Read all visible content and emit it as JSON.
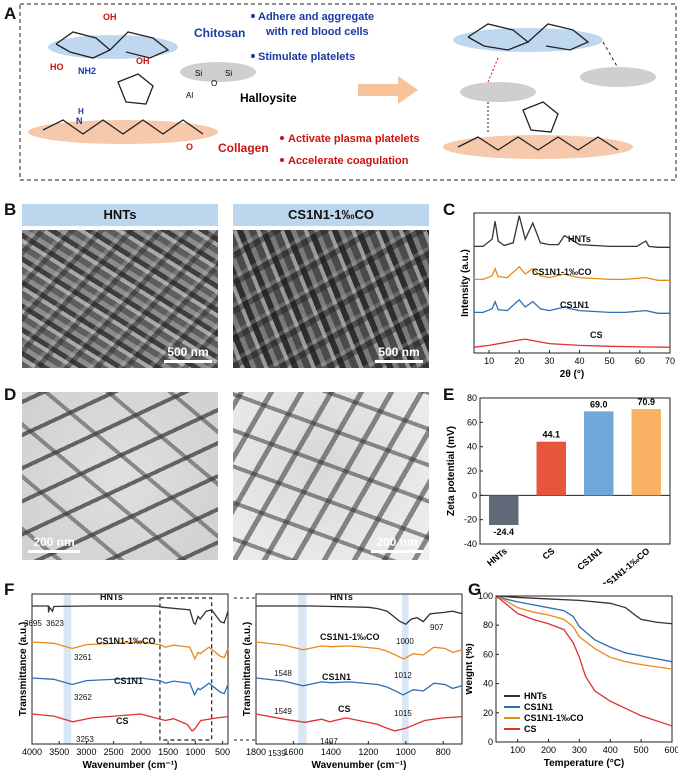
{
  "panels": {
    "a": "A",
    "b": "B",
    "c": "C",
    "d": "D",
    "e": "E",
    "f": "F",
    "g": "G"
  },
  "schematic": {
    "chitosan": "Chitosan",
    "halloysite": "Halloysite",
    "collagen": "Collagen",
    "chitosan_points": [
      "Adhere and aggregate",
      "with red blood cells",
      "Stimulate platelets"
    ],
    "collagen_points": [
      "Activate plasma platelets",
      "Accelerate coagulation"
    ],
    "groups": [
      "OH",
      "NH2",
      "HO",
      "OH",
      "Si",
      "O",
      "Al",
      "H",
      "N",
      "O"
    ]
  },
  "panelB": {
    "left_title": "HNTs",
    "right_title": "CS1N1-1‰CO",
    "scale": "500 nm"
  },
  "panelD": {
    "scale": "200 nm"
  },
  "chart_data": [
    {
      "id": "C",
      "type": "line",
      "xlabel": "2θ (°)",
      "ylabel": "Intensity (a.u.)",
      "xlim": [
        5,
        70
      ],
      "xticks": [
        10,
        20,
        30,
        40,
        50,
        60,
        70
      ],
      "series": [
        {
          "name": "HNTs",
          "color": "#333333",
          "offset": 3,
          "x": [
            5,
            8,
            11,
            12,
            13,
            15,
            18,
            20,
            22,
            24.5,
            27,
            30,
            33,
            35,
            37,
            40,
            45,
            50,
            55,
            59,
            62,
            63,
            66,
            70
          ],
          "y": [
            0.2,
            0.2,
            0.6,
            1.6,
            0.5,
            0.25,
            0.4,
            1.9,
            0.6,
            1.5,
            0.4,
            0.3,
            0.3,
            0.8,
            0.6,
            0.3,
            0.25,
            0.2,
            0.2,
            0.2,
            0.5,
            0.2,
            0.15,
            0.15
          ]
        },
        {
          "name": "CS1N1-1‰CO",
          "color": "#e88a1a",
          "offset": 2,
          "x": [
            5,
            8,
            11,
            12,
            13,
            16,
            20,
            22,
            24.5,
            27,
            30,
            35,
            37,
            40,
            45,
            50,
            55,
            62,
            66,
            70
          ],
          "y": [
            0.2,
            0.2,
            0.4,
            0.8,
            0.35,
            0.3,
            0.9,
            0.5,
            0.8,
            0.4,
            0.3,
            0.5,
            0.4,
            0.3,
            0.25,
            0.2,
            0.2,
            0.3,
            0.15,
            0.15
          ]
        },
        {
          "name": "CS1N1",
          "color": "#2f6db5",
          "offset": 1,
          "x": [
            5,
            8,
            11,
            12,
            13,
            16,
            20,
            22,
            24.5,
            27,
            30,
            35,
            37,
            40,
            45,
            50,
            55,
            62,
            66,
            70
          ],
          "y": [
            0.2,
            0.2,
            0.4,
            0.8,
            0.35,
            0.3,
            0.9,
            0.5,
            0.8,
            0.4,
            0.3,
            0.5,
            0.4,
            0.3,
            0.25,
            0.2,
            0.2,
            0.3,
            0.15,
            0.15
          ]
        },
        {
          "name": "CS",
          "color": "#e03030",
          "offset": 0,
          "x": [
            5,
            10,
            15,
            20,
            22,
            25,
            30,
            35,
            40,
            50,
            60,
            70
          ],
          "y": [
            0.1,
            0.2,
            0.35,
            0.5,
            0.55,
            0.45,
            0.3,
            0.25,
            0.2,
            0.15,
            0.12,
            0.1
          ]
        }
      ]
    },
    {
      "id": "E",
      "type": "bar",
      "ylabel": "Zeta potential (mV)",
      "ylim": [
        -40,
        80
      ],
      "yticks": [
        -40,
        -20,
        0,
        20,
        40,
        60,
        80
      ],
      "categories": [
        "HNTs",
        "CS",
        "CS1N1",
        "CS1N1-1‰CO"
      ],
      "values": [
        -24.4,
        44.1,
        69.0,
        70.9
      ],
      "labels": [
        "-24.4",
        "44.1",
        "69.0",
        "70.9"
      ],
      "colors": [
        "#606a78",
        "#e8543c",
        "#6fa8d8",
        "#f9b265"
      ]
    },
    {
      "id": "F-left",
      "type": "line",
      "xlabel": "Wavenumber (cm⁻¹)",
      "ylabel": "Transmittance (a.u.)",
      "xlim": [
        4000,
        400
      ],
      "xticks": [
        4000,
        3500,
        3000,
        2500,
        2000,
        1500,
        1000,
        500
      ],
      "annotations": [
        "3695",
        "3623",
        "3261",
        "3262",
        "3253"
      ],
      "series": [
        {
          "name": "HNTs",
          "color": "#333333",
          "offset": 3,
          "x": [
            4000,
            3700,
            3695,
            3680,
            3623,
            3600,
            3000,
            2000,
            1700,
            1600,
            1100,
            1030,
            1000,
            950,
            910,
            800,
            700,
            540,
            470,
            400
          ],
          "y": [
            1.0,
            1.0,
            0.75,
            0.95,
            0.8,
            0.98,
            1.0,
            1.0,
            1.0,
            0.95,
            0.85,
            0.35,
            0.3,
            0.6,
            0.5,
            0.8,
            0.85,
            0.4,
            0.35,
            0.8
          ]
        },
        {
          "name": "CS1N1-1‰CO",
          "color": "#e88a1a",
          "offset": 2,
          "x": [
            4000,
            3600,
            3261,
            3000,
            2000,
            1650,
            1550,
            1400,
            1100,
            1010,
            950,
            910,
            750,
            540,
            470,
            400
          ],
          "y": [
            1.0,
            0.95,
            0.75,
            0.9,
            1.0,
            0.9,
            0.8,
            0.88,
            0.8,
            0.35,
            0.6,
            0.55,
            0.8,
            0.45,
            0.4,
            0.75
          ]
        },
        {
          "name": "CS1N1",
          "color": "#2f6db5",
          "offset": 1,
          "x": [
            4000,
            3600,
            3262,
            3000,
            2000,
            1650,
            1550,
            1400,
            1100,
            1015,
            950,
            910,
            750,
            540,
            470,
            400
          ],
          "y": [
            1.0,
            0.95,
            0.75,
            0.9,
            1.0,
            0.9,
            0.8,
            0.88,
            0.8,
            0.35,
            0.6,
            0.55,
            0.8,
            0.45,
            0.4,
            0.75
          ]
        },
        {
          "name": "CS",
          "color": "#e03030",
          "offset": 0,
          "x": [
            4000,
            3600,
            3253,
            2900,
            2000,
            1640,
            1550,
            1400,
            1150,
            1060,
            1020,
            900,
            600,
            400
          ],
          "y": [
            1.0,
            0.92,
            0.7,
            0.85,
            1.0,
            0.8,
            0.75,
            0.82,
            0.6,
            0.35,
            0.4,
            0.75,
            0.85,
            0.9
          ]
        }
      ]
    },
    {
      "id": "F-right",
      "type": "line",
      "xlabel": "Wavenumber (cm⁻¹)",
      "ylabel": "Transmittance (a.u.)",
      "xlim": [
        1800,
        700
      ],
      "xticks": [
        1800,
        1600,
        1400,
        1200,
        1000,
        800
      ],
      "annotations": [
        "1000",
        "907",
        "1548",
        "1012",
        "1549",
        "1015",
        "1539",
        "1407"
      ],
      "series": [
        {
          "name": "HNTs",
          "color": "#333333",
          "offset": 3,
          "x": [
            1800,
            1500,
            1200,
            1150,
            1100,
            1030,
            1000,
            970,
            940,
            907,
            870,
            800,
            750,
            700
          ],
          "y": [
            1.0,
            1.0,
            0.95,
            0.9,
            0.8,
            0.4,
            0.3,
            0.5,
            0.55,
            0.4,
            0.7,
            0.75,
            0.8,
            0.7
          ]
        },
        {
          "name": "CS1N1-1‰CO",
          "color": "#e88a1a",
          "offset": 2,
          "x": [
            1800,
            1650,
            1548,
            1450,
            1400,
            1300,
            1150,
            1100,
            1040,
            1012,
            960,
            907,
            850,
            790,
            750,
            700
          ],
          "y": [
            1.0,
            0.88,
            0.7,
            0.85,
            0.82,
            0.85,
            0.75,
            0.65,
            0.45,
            0.35,
            0.55,
            0.5,
            0.8,
            0.75,
            0.6,
            0.7
          ]
        },
        {
          "name": "CS1N1",
          "color": "#2f6db5",
          "offset": 1,
          "x": [
            1800,
            1650,
            1549,
            1450,
            1400,
            1300,
            1150,
            1100,
            1040,
            1015,
            960,
            907,
            850,
            790,
            750,
            700
          ],
          "y": [
            1.0,
            0.88,
            0.7,
            0.85,
            0.82,
            0.85,
            0.75,
            0.65,
            0.45,
            0.35,
            0.55,
            0.5,
            0.8,
            0.75,
            0.6,
            0.7
          ]
        },
        {
          "name": "CS",
          "color": "#e03030",
          "offset": 0,
          "x": [
            1800,
            1650,
            1539,
            1450,
            1407,
            1320,
            1150,
            1100,
            1060,
            1030,
            1000,
            900,
            800,
            700
          ],
          "y": [
            1.0,
            0.8,
            0.68,
            0.8,
            0.7,
            0.85,
            0.6,
            0.45,
            0.35,
            0.4,
            0.45,
            0.75,
            0.85,
            0.9
          ]
        }
      ]
    },
    {
      "id": "G",
      "type": "line",
      "xlabel": "Temperature (°C)",
      "ylabel": "Weight (%)",
      "xlim": [
        30,
        600
      ],
      "ylim": [
        0,
        100
      ],
      "xticks": [
        100,
        200,
        300,
        400,
        500,
        600
      ],
      "yticks": [
        0,
        20,
        40,
        60,
        80,
        100
      ],
      "series": [
        {
          "name": "HNTs",
          "color": "#333333",
          "x": [
            30,
            100,
            200,
            300,
            400,
            450,
            480,
            500,
            550,
            600
          ],
          "y": [
            100,
            99,
            98,
            97,
            95,
            92,
            87,
            84,
            82,
            81
          ]
        },
        {
          "name": "CS1N1",
          "color": "#2f6db5",
          "x": [
            30,
            60,
            100,
            150,
            200,
            250,
            280,
            300,
            350,
            400,
            450,
            500,
            600
          ],
          "y": [
            100,
            98,
            96,
            94,
            92,
            90,
            86,
            79,
            70,
            65,
            61,
            59,
            55
          ]
        },
        {
          "name": "CS1N1-1‰CO",
          "color": "#e88a1a",
          "x": [
            30,
            60,
            100,
            150,
            200,
            250,
            280,
            300,
            350,
            400,
            450,
            500,
            600
          ],
          "y": [
            100,
            97,
            92,
            89,
            87,
            84,
            79,
            72,
            64,
            58,
            55,
            53,
            50
          ]
        },
        {
          "name": "CS",
          "color": "#e03030",
          "x": [
            30,
            60,
            100,
            150,
            200,
            250,
            280,
            300,
            320,
            350,
            400,
            450,
            500,
            600
          ],
          "y": [
            100,
            95,
            88,
            84,
            81,
            77,
            68,
            58,
            45,
            35,
            28,
            23,
            18,
            11
          ]
        }
      ]
    }
  ]
}
